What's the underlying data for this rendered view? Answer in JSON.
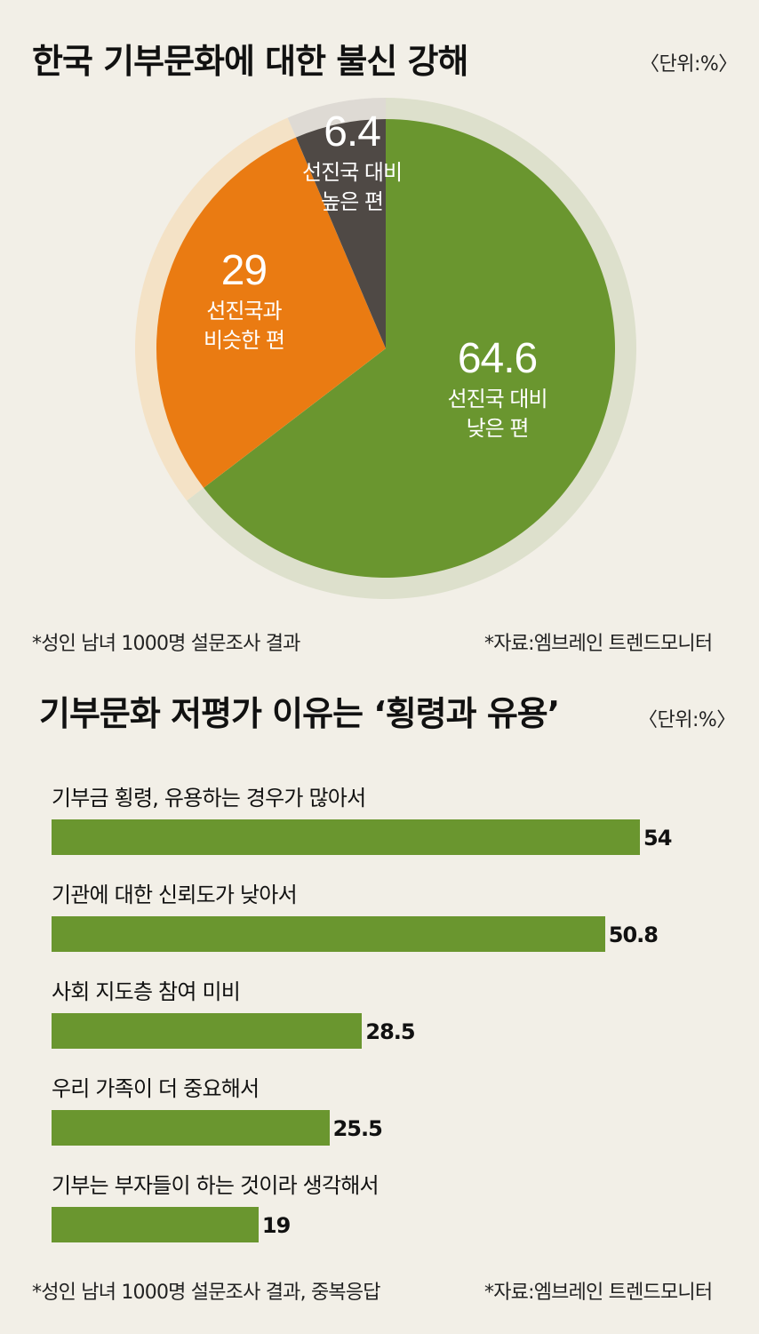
{
  "top": {
    "title": "한국 기부문화에 대한 불신 강해",
    "unit": "〈단위:%〉",
    "note_left": "*성인 남녀 1000명 설문조사 결과",
    "note_right": "*자료:엠브레인 트렌드모니터"
  },
  "bottom": {
    "title": "기부문화 저평가 이유는 ‘횡령과 유용’",
    "unit": "〈단위:%〉",
    "note_left": "*성인 남녀 1000명 설문조사 결과, 중복응답",
    "note_right": "*자료:엠브레인 트렌드모니터"
  },
  "chart_data": [
    {
      "type": "pie",
      "title": "한국 기부문화에 대한 불신 강해",
      "slices": [
        {
          "label": [
            "선진국 대비",
            "낮은 편"
          ],
          "value": 64.6,
          "value_text": "64.6",
          "color": "#6a962f",
          "ring_color": "#dde0cc"
        },
        {
          "label": [
            "선진국과",
            "비슷한 편"
          ],
          "value": 29,
          "value_text": "29",
          "color": "#ea7b12",
          "ring_color": "#f4e2c6"
        },
        {
          "label": [
            "선진국 대비",
            "높은 편"
          ],
          "value": 6.4,
          "value_text": "6.4",
          "color": "#4f4945",
          "ring_color": "#dedad4"
        }
      ]
    },
    {
      "type": "bar",
      "orientation": "horizontal",
      "title": "기부문화 저평가 이유는 ‘횡령과 유용’",
      "color": "#6a962f",
      "categories": [
        "기부금 횡령, 유용하는 경우가 많아서",
        "기관에 대한 신뢰도가 낮아서",
        "사회 지도층 참여 미비",
        "우리 가족이 더 중요해서",
        "기부는 부자들이 하는 것이라 생각해서"
      ],
      "values": [
        54,
        50.8,
        28.5,
        25.5,
        19
      ],
      "value_labels": [
        "54",
        "50.8",
        "28.5",
        "25.5",
        "19"
      ]
    }
  ]
}
